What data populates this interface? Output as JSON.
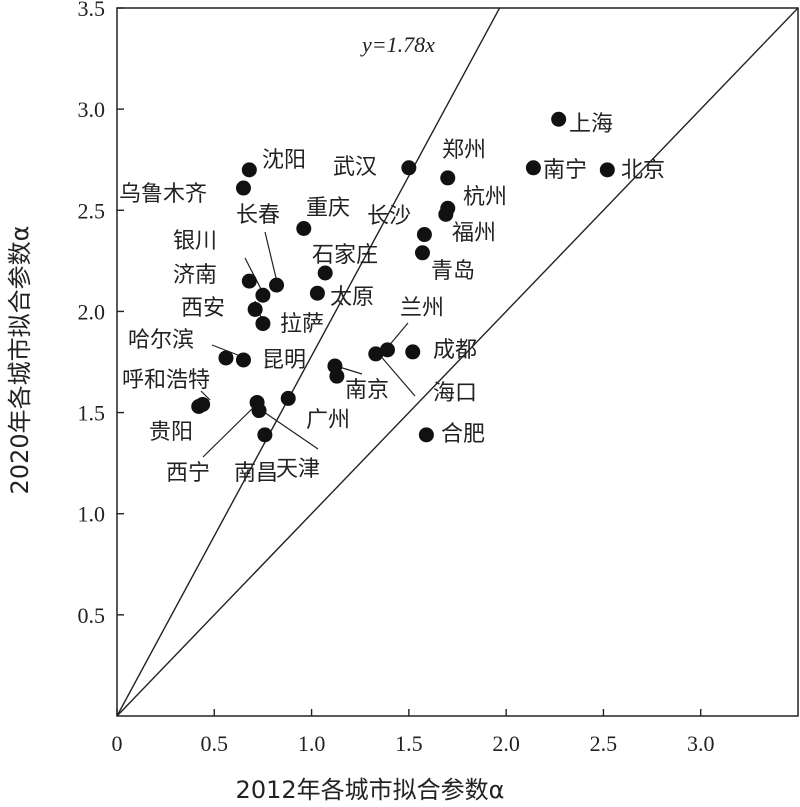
{
  "chart_data": {
    "type": "scatter",
    "xlabel": "2012年各城市拟合参数α",
    "ylabel": "2020年各城市拟合参数α",
    "xlim": [
      0,
      3.5
    ],
    "ylim": [
      0,
      3.5
    ],
    "x_ticks": [
      "0",
      "0.5",
      "1.0",
      "1.5",
      "2.0",
      "2.5",
      "3.0"
    ],
    "y_ticks": [
      "0.5",
      "1.0",
      "1.5",
      "2.0",
      "2.5",
      "3.0",
      "3.5"
    ],
    "grid": false,
    "reference_lines": [
      {
        "slope": 1.78,
        "label": "y=1.78x"
      },
      {
        "slope": 1.0,
        "label": ""
      }
    ],
    "points": [
      {
        "name": "上海",
        "x": 2.27,
        "y": 2.95
      },
      {
        "name": "北京",
        "x": 2.52,
        "y": 2.7
      },
      {
        "name": "南宁",
        "x": 2.14,
        "y": 2.71
      },
      {
        "name": "郑州",
        "x": 1.7,
        "y": 2.66
      },
      {
        "name": "武汉",
        "x": 1.5,
        "y": 2.71
      },
      {
        "name": "杭州",
        "x": 1.7,
        "y": 2.51
      },
      {
        "name": "福州",
        "x": 1.69,
        "y": 2.48
      },
      {
        "name": "长沙",
        "x": 1.58,
        "y": 2.38
      },
      {
        "name": "青岛",
        "x": 1.57,
        "y": 2.29
      },
      {
        "name": "沈阳",
        "x": 0.68,
        "y": 2.7
      },
      {
        "name": "乌鲁木齐",
        "x": 0.65,
        "y": 2.61
      },
      {
        "name": "重庆",
        "x": 0.96,
        "y": 2.41
      },
      {
        "name": "长春",
        "x": 0.82,
        "y": 2.13
      },
      {
        "name": "银川",
        "x": 0.75,
        "y": 2.08
      },
      {
        "name": "石家庄",
        "x": 1.07,
        "y": 2.19
      },
      {
        "name": "太原",
        "x": 1.03,
        "y": 2.09
      },
      {
        "name": "济南",
        "x": 0.68,
        "y": 2.15
      },
      {
        "name": "西安",
        "x": 0.71,
        "y": 2.01
      },
      {
        "name": "拉萨",
        "x": 0.75,
        "y": 1.94
      },
      {
        "name": "哈尔滨",
        "x": 0.56,
        "y": 1.77
      },
      {
        "name": "昆明",
        "x": 0.65,
        "y": 1.76
      },
      {
        "name": "兰州",
        "x": 1.39,
        "y": 1.81
      },
      {
        "name": "成都",
        "x": 1.52,
        "y": 1.8
      },
      {
        "name": "海口",
        "x": 1.33,
        "y": 1.79
      },
      {
        "name": "南京",
        "x": 1.12,
        "y": 1.73
      },
      {
        "name": "呼和浩特",
        "x": 0.44,
        "y": 1.54
      },
      {
        "name": "贵阳",
        "x": 0.42,
        "y": 1.53
      },
      {
        "name": "广州",
        "x": 0.88,
        "y": 1.57
      },
      {
        "name": "西宁",
        "x": 0.72,
        "y": 1.55
      },
      {
        "name": "天津",
        "x": 0.73,
        "y": 1.51
      },
      {
        "name": "南昌",
        "x": 0.76,
        "y": 1.39
      },
      {
        "name": "合肥",
        "x": 1.59,
        "y": 1.39
      },
      {
        "name": "",
        "x": 1.13,
        "y": 1.68
      }
    ]
  }
}
